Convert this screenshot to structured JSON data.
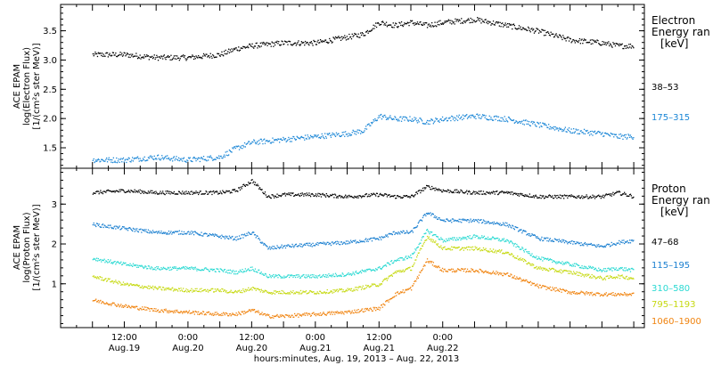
{
  "chart_data": [
    {
      "type": "scatter",
      "panel": "electron",
      "ylabel_lines": [
        "ACE EPAM",
        "log(Electron Flux)",
        "[1/(cm²s ster MeV)]"
      ],
      "ylim": [
        1.15,
        3.95
      ],
      "yticks": [
        1.5,
        2.0,
        2.5,
        3.0,
        3.5
      ],
      "ytick_labels": [
        "1.5",
        "2.0",
        "2.5",
        "3.0",
        "3.5"
      ],
      "legend_lines": [
        "Electron",
        "Energy ran",
        "[keV]"
      ],
      "series": [
        {
          "name": "38–53",
          "color": "#000000",
          "x": [
            0,
            6,
            12,
            18,
            24,
            27,
            30,
            36,
            42,
            48,
            51,
            54,
            57,
            60,
            63,
            66,
            72,
            78,
            84,
            90,
            96,
            99,
            102
          ],
          "y": [
            3.1,
            3.1,
            3.05,
            3.05,
            3.1,
            3.2,
            3.25,
            3.3,
            3.3,
            3.4,
            3.45,
            3.65,
            3.6,
            3.65,
            3.6,
            3.65,
            3.7,
            3.6,
            3.5,
            3.35,
            3.3,
            3.25,
            3.25
          ]
        },
        {
          "name": "175–315",
          "color": "#1a86d6",
          "x": [
            0,
            6,
            12,
            18,
            24,
            27,
            30,
            36,
            42,
            48,
            51,
            54,
            57,
            60,
            63,
            66,
            72,
            78,
            84,
            90,
            96,
            99,
            102
          ],
          "y": [
            1.3,
            1.3,
            1.35,
            1.3,
            1.35,
            1.5,
            1.6,
            1.65,
            1.7,
            1.75,
            1.8,
            2.05,
            2.0,
            2.0,
            1.95,
            2.0,
            2.05,
            2.0,
            1.9,
            1.8,
            1.75,
            1.7,
            1.7
          ]
        }
      ]
    },
    {
      "type": "scatter",
      "panel": "proton",
      "ylabel_lines": [
        "ACE EPAM",
        "log(Proton Flux)",
        "[1/(cm²s ster MeV)]"
      ],
      "ylim": [
        -0.1,
        3.9
      ],
      "yticks": [
        1,
        2,
        3
      ],
      "ytick_labels": [
        "1",
        "2",
        "3"
      ],
      "legend_lines": [
        "Proton",
        "Energy ran",
        "[keV]"
      ],
      "series": [
        {
          "name": "47–68",
          "color": "#000000",
          "x": [
            0,
            6,
            12,
            18,
            24,
            27,
            30,
            33,
            36,
            42,
            48,
            54,
            57,
            60,
            63,
            66,
            72,
            78,
            84,
            90,
            96,
            99,
            102
          ],
          "y": [
            3.3,
            3.35,
            3.3,
            3.3,
            3.3,
            3.35,
            3.6,
            3.2,
            3.25,
            3.25,
            3.2,
            3.25,
            3.2,
            3.2,
            3.45,
            3.35,
            3.3,
            3.3,
            3.2,
            3.2,
            3.2,
            3.3,
            3.2
          ]
        },
        {
          "name": "115–195",
          "color": "#1a7fd0",
          "x": [
            0,
            6,
            12,
            18,
            24,
            27,
            30,
            33,
            36,
            42,
            48,
            54,
            57,
            60,
            63,
            66,
            72,
            78,
            84,
            90,
            96,
            99,
            102
          ],
          "y": [
            2.5,
            2.4,
            2.3,
            2.3,
            2.2,
            2.15,
            2.3,
            1.9,
            1.95,
            2.0,
            2.05,
            2.15,
            2.3,
            2.3,
            2.8,
            2.6,
            2.6,
            2.5,
            2.15,
            2.05,
            1.95,
            2.05,
            2.1
          ]
        },
        {
          "name": "310–580",
          "color": "#2ad9d2",
          "x": [
            0,
            6,
            12,
            18,
            24,
            27,
            30,
            33,
            36,
            42,
            48,
            54,
            57,
            60,
            63,
            66,
            72,
            78,
            84,
            90,
            96,
            99,
            102
          ],
          "y": [
            1.65,
            1.5,
            1.4,
            1.4,
            1.35,
            1.3,
            1.4,
            1.2,
            1.2,
            1.2,
            1.25,
            1.4,
            1.6,
            1.7,
            2.35,
            2.1,
            2.2,
            2.1,
            1.65,
            1.5,
            1.35,
            1.4,
            1.35
          ]
        },
        {
          "name": "795–1193",
          "color": "#c6d911",
          "x": [
            0,
            6,
            12,
            18,
            24,
            27,
            30,
            33,
            36,
            42,
            48,
            54,
            57,
            60,
            63,
            66,
            72,
            78,
            84,
            90,
            96,
            99,
            102
          ],
          "y": [
            1.2,
            1.0,
            0.9,
            0.85,
            0.85,
            0.8,
            0.9,
            0.8,
            0.8,
            0.8,
            0.85,
            1.0,
            1.3,
            1.4,
            2.2,
            1.9,
            1.9,
            1.8,
            1.4,
            1.3,
            1.15,
            1.2,
            1.15
          ]
        },
        {
          "name": "1060–1900",
          "color": "#f0830e",
          "x": [
            0,
            6,
            12,
            18,
            24,
            27,
            30,
            33,
            36,
            42,
            48,
            54,
            57,
            60,
            63,
            66,
            72,
            78,
            84,
            90,
            96,
            99,
            102
          ],
          "y": [
            0.6,
            0.45,
            0.35,
            0.3,
            0.25,
            0.25,
            0.35,
            0.2,
            0.2,
            0.25,
            0.3,
            0.4,
            0.75,
            0.9,
            1.6,
            1.35,
            1.35,
            1.25,
            0.95,
            0.8,
            0.75,
            0.75,
            0.75
          ]
        }
      ]
    }
  ],
  "x_axis": {
    "xlim": [
      -6,
      104
    ],
    "major_ticks": [
      6,
      30,
      54,
      78
    ],
    "minor_step": 3,
    "tick_time_labels": [
      "12:00",
      "0:00",
      "12:00",
      "0:00",
      "12:00",
      "0:00"
    ],
    "tick_date_labels": [
      "Aug.19",
      "Aug.20",
      "Aug.20",
      "Aug.21",
      "Aug.21",
      "Aug.22"
    ],
    "tick_positions": [
      6,
      18,
      30,
      42,
      54,
      66
    ],
    "xlabel": "hours:minutes, Aug. 19, 2013 – Aug. 22, 2013"
  }
}
